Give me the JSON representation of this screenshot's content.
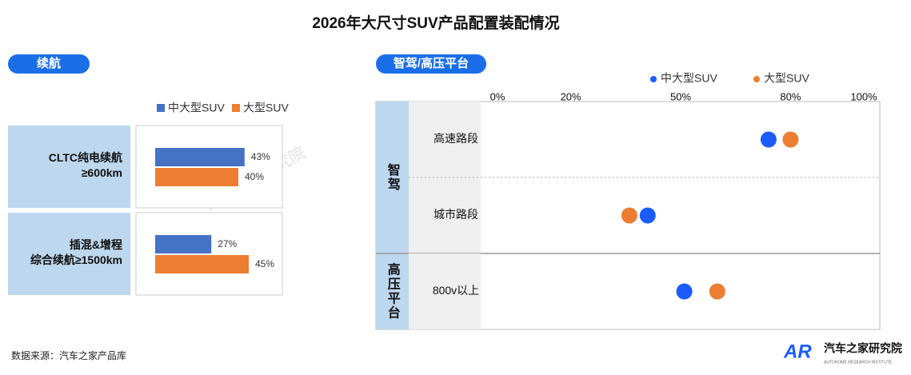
{
  "title": "2026年大尺寸SUV产品配置装配情况",
  "source": "数据来源：汽车之家产品库",
  "watermark": "汽车之家研究院",
  "logo": {
    "mark": "AR",
    "name": "汽车之家研究院",
    "subtitle": "AUTOHOME RESEARCH INSTITUTE"
  },
  "chart_data": [
    {
      "type": "bar",
      "title": "续航",
      "categories": [
        [
          "CLTC纯电续航",
          "≥600km"
        ],
        [
          "插混&增程",
          "综合续航≥1500km"
        ]
      ],
      "series": [
        {
          "name": "中大型SUV",
          "color": "#4472c4",
          "values": [
            43,
            27
          ],
          "value_labels": [
            "43%",
            "27%"
          ]
        },
        {
          "name": "大型SUV",
          "color": "#ed7d31",
          "values": [
            40,
            45
          ],
          "value_labels": [
            "40%",
            "45%"
          ]
        }
      ]
    },
    {
      "type": "dot",
      "title": "智驾/高压平台",
      "groups": [
        {
          "label": "智驾",
          "categories": [
            "高速路段",
            "城市路段"
          ]
        },
        {
          "label": "高压平台",
          "categories": [
            "800v以上"
          ]
        }
      ],
      "series": [
        {
          "name": "中大型SUV",
          "color": "#1a5cff",
          "values": [
            74,
            41,
            51
          ]
        },
        {
          "name": "大型SUV",
          "color": "#ed7d31",
          "values": [
            80,
            36,
            60
          ]
        }
      ],
      "xlim": [
        0,
        100
      ],
      "xticks": [
        {
          "value": 0,
          "label": "0%"
        },
        {
          "value": 20,
          "label": "20%"
        },
        {
          "value": 50,
          "label": "50%"
        },
        {
          "value": 80,
          "label": "80%"
        },
        {
          "value": 100,
          "label": "100%"
        }
      ]
    }
  ]
}
